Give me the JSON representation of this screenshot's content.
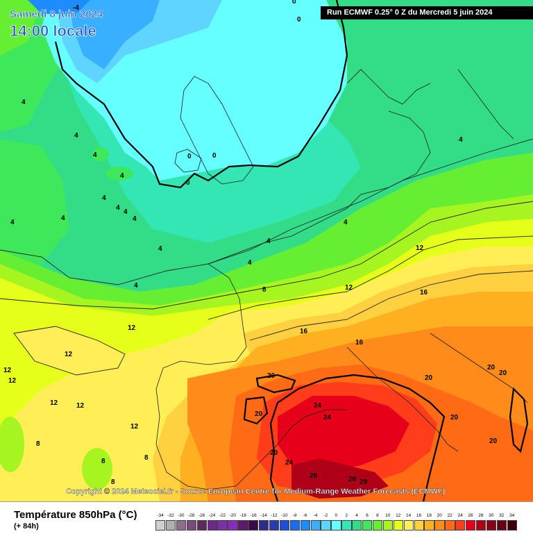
{
  "header": {
    "date_label": "Samedi 8 juin 2024",
    "time_label": "14:00 locale",
    "run_label": "Run ECMWF 0.25° 0 Z du Mercredi 5 juin 2024"
  },
  "copyright": "Copyright © 2024 Meteociel.fr - Source European Centre for Medium-Range Weather Forecasts (ECMWF)",
  "legend": {
    "title": "Température 850hPa (°C)",
    "lead_time": "(+ 84h)",
    "stops": [
      {
        "label": "-34",
        "color": "#cfcfcf"
      },
      {
        "label": "-32",
        "color": "#b0b0b0"
      },
      {
        "label": "-30",
        "color": "#8c6f8c"
      },
      {
        "label": "-28",
        "color": "#7a4a7a"
      },
      {
        "label": "-26",
        "color": "#5e2a5e"
      },
      {
        "label": "-24",
        "color": "#6a2a8a"
      },
      {
        "label": "-22",
        "color": "#7b2fa8"
      },
      {
        "label": "-20",
        "color": "#8a2bbd"
      },
      {
        "label": "-18",
        "color": "#5a1b6b"
      },
      {
        "label": "-16",
        "color": "#3b0a4a"
      },
      {
        "label": "-14",
        "color": "#2c2c8a"
      },
      {
        "label": "-12",
        "color": "#2a3bb0"
      },
      {
        "label": "-10",
        "color": "#1f4fd8"
      },
      {
        "label": "-8",
        "color": "#1a6cf0"
      },
      {
        "label": "-6",
        "color": "#1e8cff"
      },
      {
        "label": "-4",
        "color": "#38b0ff"
      },
      {
        "label": "-2",
        "color": "#5fd4ff"
      },
      {
        "label": "0",
        "color": "#66ffff"
      },
      {
        "label": "2",
        "color": "#33e6b3"
      },
      {
        "label": "4",
        "color": "#33dd88"
      },
      {
        "label": "6",
        "color": "#3ee85a"
      },
      {
        "label": "8",
        "color": "#66ee33"
      },
      {
        "label": "10",
        "color": "#a6f520"
      },
      {
        "label": "12",
        "color": "#e6ff1a"
      },
      {
        "label": "14",
        "color": "#ffee55"
      },
      {
        "label": "16",
        "color": "#ffd040"
      },
      {
        "label": "18",
        "color": "#ffb020"
      },
      {
        "label": "20",
        "color": "#ff8c1a"
      },
      {
        "label": "22",
        "color": "#ff6a14"
      },
      {
        "label": "24",
        "color": "#ff3d1a"
      },
      {
        "label": "26",
        "color": "#e6001a"
      },
      {
        "label": "28",
        "color": "#b00018"
      },
      {
        "label": "30",
        "color": "#8a0016"
      },
      {
        "label": "32",
        "color": "#6a0012"
      },
      {
        "label": "34",
        "color": "#3d000a"
      }
    ]
  },
  "contour_labels": [
    "-4",
    "0",
    "0",
    "0",
    "0",
    "0",
    "4",
    "4",
    "4",
    "4",
    "4",
    "4",
    "4",
    "4",
    "4",
    "4",
    "4",
    "4",
    "4",
    "4",
    "4",
    "4",
    "8",
    "12",
    "12",
    "12",
    "12",
    "12",
    "12",
    "12",
    "12",
    "12",
    "16",
    "16",
    "16",
    "20",
    "20",
    "20",
    "20",
    "20",
    "20",
    "20",
    "20",
    "24",
    "24",
    "24",
    "28",
    "28",
    "29",
    "8",
    "8",
    "8",
    "8"
  ]
}
